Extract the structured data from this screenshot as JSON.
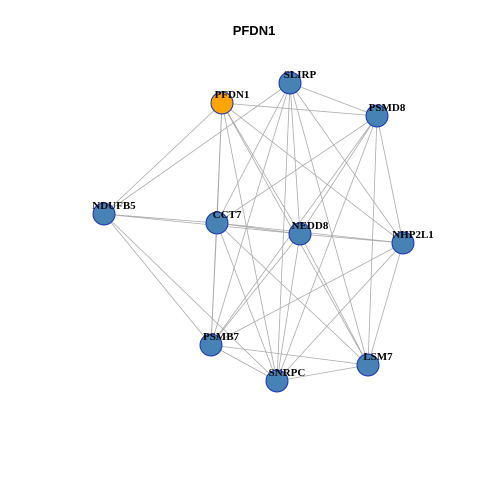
{
  "title": "PFDN1",
  "nodes": [
    {
      "label": "PFDN1"
    },
    {
      "label": "SLIRP"
    },
    {
      "label": "PSMD8"
    },
    {
      "label": "NDUFB5"
    },
    {
      "label": "CCT7"
    },
    {
      "label": "NEDD8"
    },
    {
      "label": "NHP2L1"
    },
    {
      "label": "PSMB7"
    },
    {
      "label": "LSM7"
    },
    {
      "label": "SNRPC"
    }
  ]
}
